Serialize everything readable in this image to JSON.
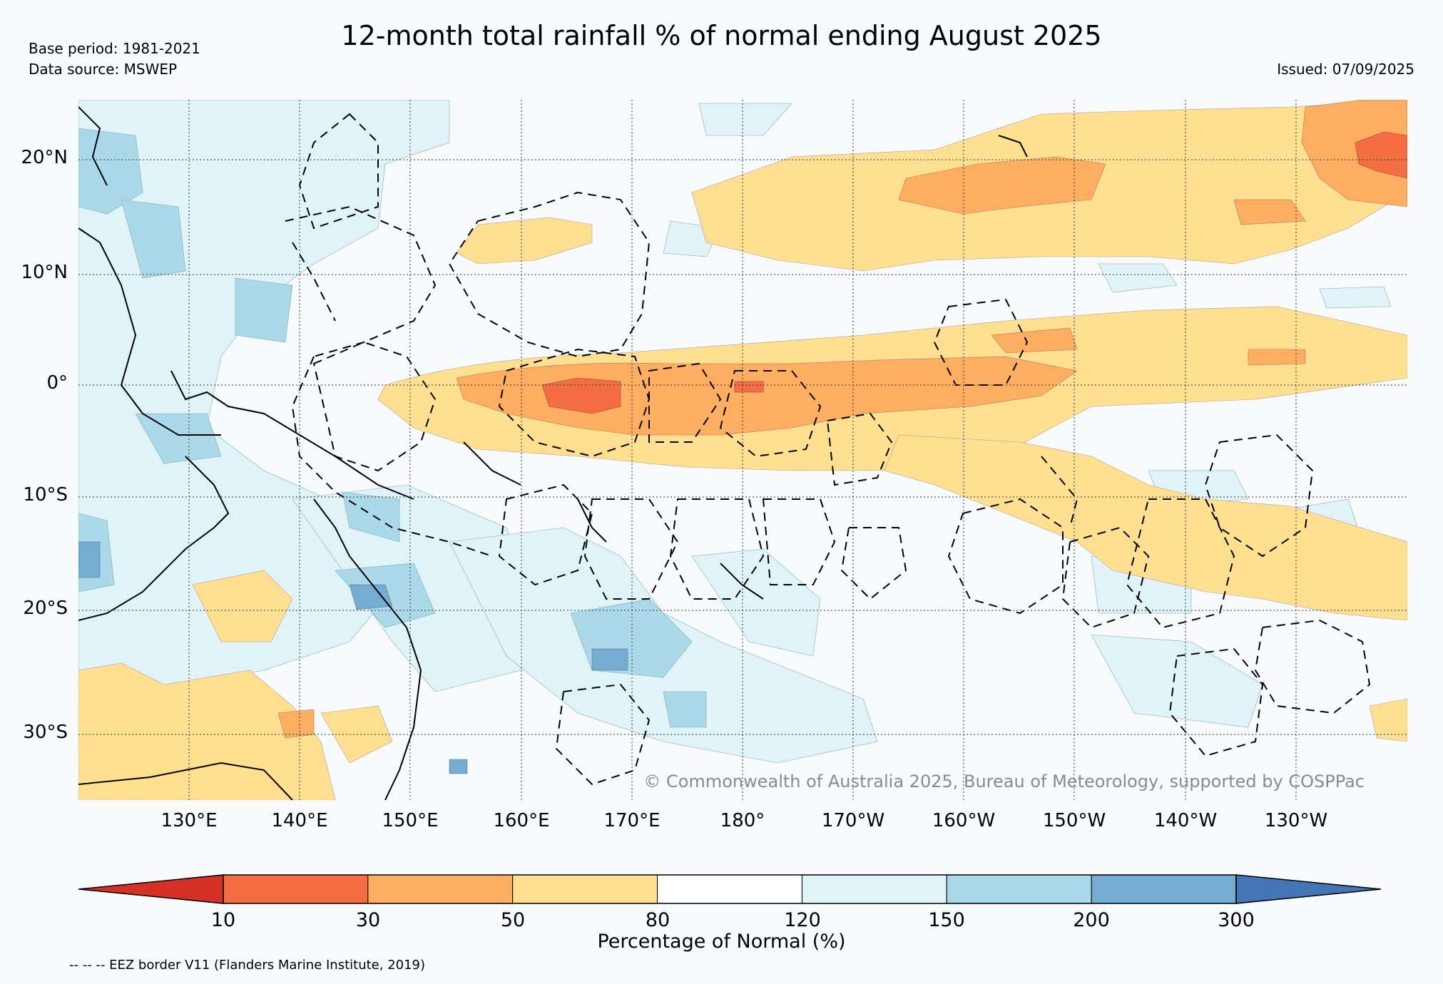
{
  "header": {
    "title": "12-month total rainfall % of normal ending August 2025",
    "base_period": "Base period: 1981-2021",
    "data_source": "Data source: MSWEP",
    "issued": "Issued: 07/09/2025"
  },
  "map": {
    "lat_ticks": [
      "20°N",
      "10°N",
      "0°",
      "10°S",
      "20°S",
      "30°S"
    ],
    "lon_ticks": [
      "130°E",
      "140°E",
      "150°E",
      "160°E",
      "170°E",
      "180°",
      "170°W",
      "160°W",
      "150°W",
      "140°W",
      "130°W"
    ],
    "copyright": "© Commonwealth of Australia 2025, Bureau of Meteorology, supported by COSPPac"
  },
  "legend": {
    "ticks": [
      "10",
      "30",
      "50",
      "80",
      "120",
      "150",
      "200",
      "300"
    ],
    "label": "Percentage of Normal (%)",
    "colors": [
      "#d73027",
      "#f46d43",
      "#fdae61",
      "#fee090",
      "#ffffff",
      "#e0f3f8",
      "#abd9e9",
      "#74add1",
      "#4575b4"
    ],
    "eez_note": "-- -- -- EEZ border V11 (Flanders Marine Institute, 2019)"
  }
}
